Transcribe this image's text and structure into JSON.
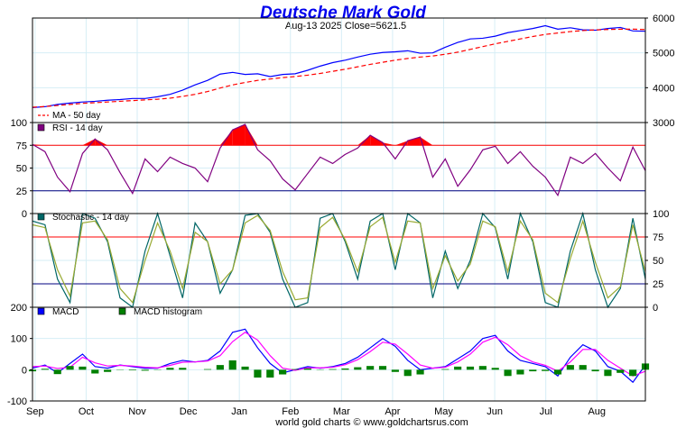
{
  "chart_data": {
    "title": "Deutsche Mark Gold",
    "subtitle": "Aug-13  2025   Close=5621.5",
    "footer": "world gold charts © www.goldchartsrus.com",
    "months": [
      "Sep",
      "Oct",
      "Nov",
      "Dec",
      "Jan",
      "Feb",
      "Mar",
      "Apr",
      "May",
      "Jun",
      "Jul",
      "Aug"
    ],
    "colors": {
      "title": "#0000ee",
      "price": "#0000ff",
      "ma": "#ff0000",
      "rsi": "#800080",
      "rsi_fill": "#ff0000",
      "stoch_k": "#006666",
      "stoch_d": "#99aa33",
      "macd": "#0000ff",
      "signal": "#ff00ff",
      "hist": "#008000",
      "level_hi": "#ff0000",
      "level_lo": "#000080"
    },
    "panels": [
      {
        "id": "price",
        "type": "line",
        "ylim": [
          3000,
          6000
        ],
        "y_ticks": [
          3000,
          4000,
          5000,
          6000
        ],
        "legend": [
          {
            "label": "MA - 50 day",
            "swatch": "dash"
          }
        ],
        "series": [
          {
            "name": "Price",
            "values": [
              3430,
              3455,
              3520,
              3560,
              3590,
              3610,
              3640,
              3660,
              3690,
              3690,
              3740,
              3810,
              3930,
              4080,
              4210,
              4390,
              4440,
              4380,
              4400,
              4320,
              4380,
              4400,
              4500,
              4620,
              4720,
              4790,
              4880,
              4960,
              5010,
              5030,
              5060,
              4990,
              5000,
              5160,
              5300,
              5400,
              5420,
              5480,
              5580,
              5640,
              5700,
              5780,
              5680,
              5720,
              5660,
              5650,
              5700,
              5730,
              5630,
              5620
            ]
          },
          {
            "name": "MA - 50 day",
            "values": [
              3440,
              3460,
              3490,
              3520,
              3550,
              3570,
              3590,
              3610,
              3630,
              3650,
              3670,
              3700,
              3750,
              3810,
              3890,
              3990,
              4080,
              4150,
              4210,
              4250,
              4290,
              4320,
              4360,
              4410,
              4470,
              4530,
              4600,
              4670,
              4730,
              4790,
              4840,
              4880,
              4910,
              4960,
              5020,
              5100,
              5180,
              5260,
              5330,
              5400,
              5470,
              5530,
              5570,
              5610,
              5640,
              5660,
              5670,
              5680,
              5680,
              5670
            ]
          }
        ]
      },
      {
        "id": "rsi",
        "type": "line",
        "ylim": [
          0,
          100
        ],
        "y_ticks": [
          0,
          25,
          50,
          75,
          100
        ],
        "levels": [
          25,
          75
        ],
        "legend": [
          {
            "label": "RSI - 14 day",
            "swatch": "square"
          }
        ],
        "series": [
          {
            "name": "RSI - 14 day",
            "values": [
              76,
              68,
              40,
              24,
              66,
              82,
              70,
              45,
              22,
              60,
              46,
              62,
              55,
              50,
              35,
              72,
              92,
              98,
              70,
              58,
              38,
              26,
              44,
              62,
              55,
              65,
              72,
              86,
              78,
              60,
              80,
              84,
              40,
              60,
              30,
              48,
              70,
              74,
              55,
              68,
              52,
              40,
              20,
              62,
              55,
              66,
              50,
              36,
              73,
              47
            ]
          }
        ]
      },
      {
        "id": "stoch",
        "type": "line",
        "ylim": [
          0,
          100
        ],
        "y_ticks": [
          0,
          25,
          50,
          75,
          100
        ],
        "levels": [
          25,
          75
        ],
        "legend": [
          {
            "label": "Stochastic - 14 day",
            "swatch": "square"
          }
        ],
        "series": [
          {
            "name": "%K",
            "values": [
              92,
              88,
              30,
              5,
              100,
              95,
              70,
              10,
              0,
              60,
              100,
              55,
              10,
              90,
              70,
              15,
              40,
              98,
              100,
              80,
              30,
              0,
              5,
              95,
              100,
              70,
              30,
              92,
              100,
              40,
              100,
              90,
              10,
              60,
              20,
              50,
              100,
              85,
              30,
              100,
              70,
              5,
              0,
              60,
              100,
              40,
              0,
              20,
              95,
              30
            ]
          },
          {
            "name": "%D",
            "values": [
              88,
              85,
              40,
              12,
              90,
              92,
              72,
              20,
              5,
              50,
              90,
              60,
              20,
              80,
              70,
              25,
              40,
              90,
              98,
              82,
              38,
              8,
              10,
              85,
              96,
              72,
              38,
              86,
              96,
              48,
              92,
              90,
              20,
              55,
              28,
              46,
              92,
              86,
              38,
              92,
              72,
              15,
              5,
              52,
              92,
              48,
              10,
              22,
              88,
              38
            ]
          }
        ]
      },
      {
        "id": "macd",
        "type": "line",
        "ylim": [
          -100,
          200
        ],
        "y_ticks": [
          -100,
          0,
          100,
          200
        ],
        "legend": [
          {
            "label": "MACD",
            "swatch": "square"
          },
          {
            "label": "MACD histogram",
            "swatch": "square"
          }
        ],
        "series": [
          {
            "name": "MACD",
            "values": [
              5,
              15,
              -10,
              20,
              50,
              10,
              5,
              15,
              10,
              5,
              5,
              20,
              30,
              25,
              30,
              60,
              120,
              130,
              70,
              20,
              -10,
              0,
              10,
              5,
              10,
              20,
              40,
              70,
              100,
              75,
              30,
              0,
              5,
              10,
              35,
              60,
              100,
              110,
              60,
              30,
              20,
              10,
              -20,
              40,
              80,
              60,
              10,
              -5,
              -40,
              15
            ]
          },
          {
            "name": "Signal",
            "values": [
              10,
              12,
              4,
              8,
              40,
              22,
              12,
              14,
              12,
              8,
              6,
              14,
              24,
              25,
              28,
              45,
              90,
              120,
              95,
              45,
              5,
              -2,
              6,
              6,
              8,
              16,
              32,
              58,
              88,
              82,
              50,
              15,
              5,
              8,
              25,
              50,
              88,
              104,
              80,
              45,
              25,
              14,
              -5,
              25,
              65,
              65,
              30,
              5,
              -20,
              -5
            ]
          },
          {
            "name": "MACD histogram",
            "values": [
              -5,
              3,
              -14,
              12,
              10,
              -12,
              -7,
              1,
              -2,
              -3,
              -1,
              6,
              6,
              0,
              2,
              15,
              30,
              10,
              -25,
              -25,
              -15,
              2,
              4,
              -1,
              2,
              4,
              8,
              12,
              12,
              -7,
              -20,
              -15,
              0,
              2,
              10,
              10,
              12,
              6,
              -20,
              -15,
              -5,
              -4,
              -15,
              15,
              15,
              -5,
              -20,
              -10,
              -20,
              20
            ]
          }
        ]
      }
    ]
  }
}
